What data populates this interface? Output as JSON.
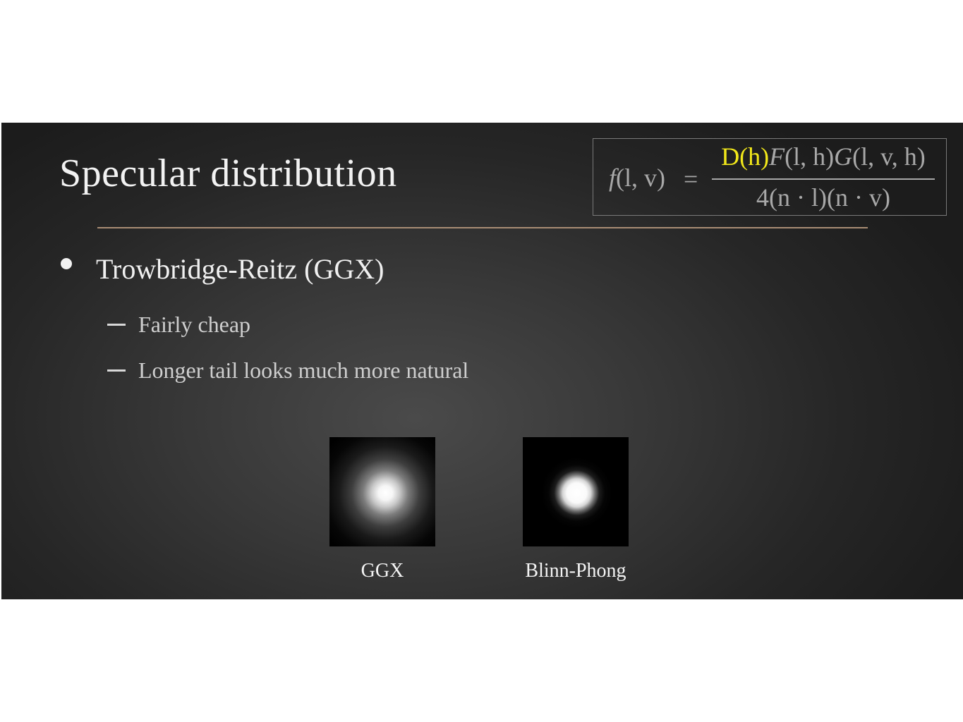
{
  "slide": {
    "title": "Specular distribution",
    "formula": {
      "lhs_f": "f",
      "lhs_args": "(l, v)",
      "equals": "=",
      "numerator_highlight": "D(h)",
      "numerator_F": "F",
      "numerator_F_args": "(l, h)",
      "numerator_G": "G",
      "numerator_G_args": "(l, v, h)",
      "denominator": "4(n · l)(n · v)",
      "highlight_color": "#f2e81a"
    },
    "bullet": "Trowbridge-Reitz (GGX)",
    "sub_bullets": [
      "Fairly cheap",
      "Longer tail looks much more natural"
    ],
    "images": [
      {
        "caption": "GGX"
      },
      {
        "caption": "Blinn-Phong"
      }
    ],
    "accent_line_color": "#a88c74"
  }
}
